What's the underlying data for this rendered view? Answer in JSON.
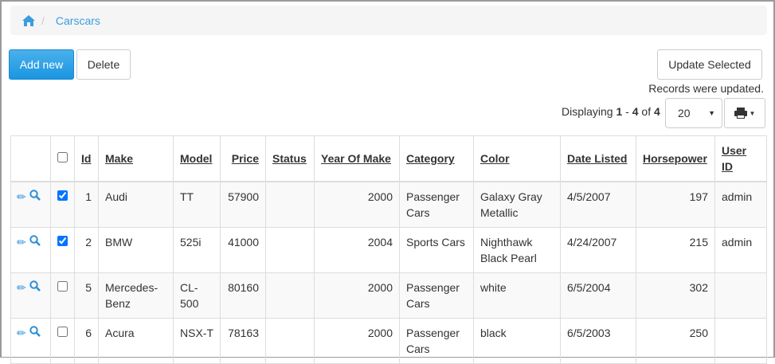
{
  "breadcrumb": {
    "home_icon": "home-icon",
    "current": "Carscars"
  },
  "toolbar": {
    "add_new": "Add new",
    "delete": "Delete",
    "update_selected": "Update Selected",
    "status_message": "Records were updated."
  },
  "pagination": {
    "prefix": "Displaying",
    "from": "1",
    "dash": "-",
    "to": "4",
    "of": "of",
    "total": "4",
    "page_size": "20",
    "print_icon": "print-icon"
  },
  "colors": {
    "accent": "#1a96e0",
    "link": "#3a9de0"
  },
  "table": {
    "headers": [
      "Id",
      "Make",
      "Model",
      "Price",
      "Status",
      "Year Of Make",
      "Category",
      "Color",
      "Date Listed",
      "Horsepower",
      "User ID"
    ],
    "rows": [
      {
        "checked": true,
        "id": "1",
        "make": "Audi",
        "model": "TT",
        "price": "57900",
        "status": "",
        "year": "2000",
        "category": "Passenger Cars",
        "color": "Galaxy Gray Metallic",
        "date": "4/5/2007",
        "hp": "197",
        "user": "admin"
      },
      {
        "checked": true,
        "id": "2",
        "make": "BMW",
        "model": "525i",
        "price": "41000",
        "status": "",
        "year": "2004",
        "category": "Sports Cars",
        "color": "Nighthawk Black Pearl",
        "date": "4/24/2007",
        "hp": "215",
        "user": "admin"
      },
      {
        "checked": false,
        "id": "5",
        "make": "Mercedes-Benz",
        "model": "CL-500",
        "price": "80160",
        "status": "",
        "year": "2000",
        "category": "Passenger Cars",
        "color": "white",
        "date": "6/5/2004",
        "hp": "302",
        "user": ""
      },
      {
        "checked": false,
        "id": "6",
        "make": "Acura",
        "model": "NSX-T",
        "price": "78163",
        "status": "",
        "year": "2000",
        "category": "Passenger Cars",
        "color": "black",
        "date": "6/5/2003",
        "hp": "250",
        "user": ""
      }
    ]
  }
}
